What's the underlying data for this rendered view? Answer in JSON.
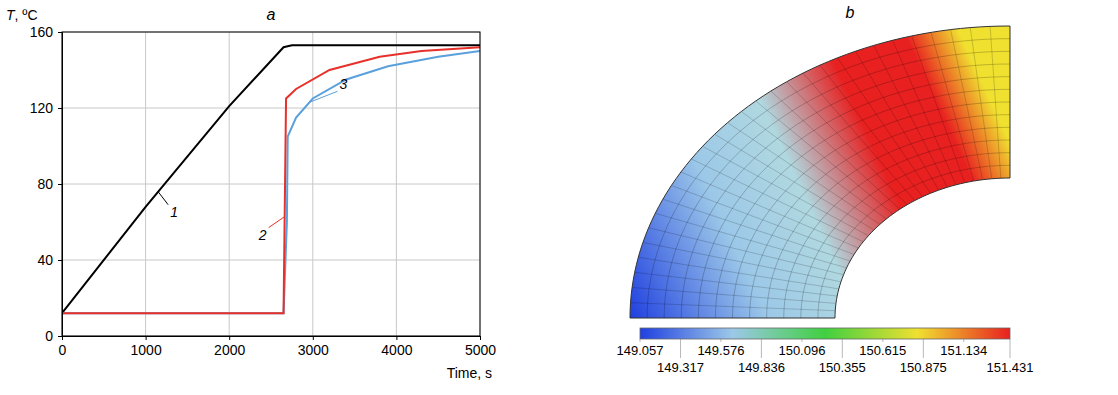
{
  "chart_data": [
    {
      "type": "line",
      "title": "a",
      "x_label": "Time, s",
      "y_label": "T, ºC",
      "xlim": [
        0,
        5000
      ],
      "xticks": [
        0,
        1000,
        2000,
        3000,
        4000,
        5000
      ],
      "ylim": [
        0,
        160
      ],
      "yticks": [
        0,
        40,
        80,
        120,
        160
      ],
      "grid": true,
      "series": [
        {
          "name": "1",
          "color": "#000000",
          "x": [
            0,
            1000,
            2000,
            2650,
            2750,
            5000
          ],
          "values": [
            12,
            68,
            121,
            152,
            153,
            153
          ]
        },
        {
          "name": "3",
          "color": "#5aa0dc",
          "x": [
            0,
            2650,
            2690,
            2700,
            2800,
            3000,
            3400,
            3900,
            4500,
            5000
          ],
          "values": [
            12,
            12,
            60,
            105,
            115,
            125,
            135,
            142,
            147,
            150
          ]
        },
        {
          "name": "2",
          "color": "#e8302a",
          "x": [
            0,
            2650,
            2680,
            2800,
            3200,
            3800,
            4300,
            5000
          ],
          "values": [
            12,
            12,
            125,
            130,
            140,
            147,
            150,
            152
          ]
        }
      ]
    },
    {
      "type": "field",
      "title": "b",
      "colorbar_range": [
        149.057,
        151.431
      ],
      "colorbar_ticks": [
        149.057,
        149.317,
        149.576,
        149.836,
        150.096,
        150.355,
        150.615,
        150.875,
        151.134,
        151.431
      ]
    }
  ]
}
